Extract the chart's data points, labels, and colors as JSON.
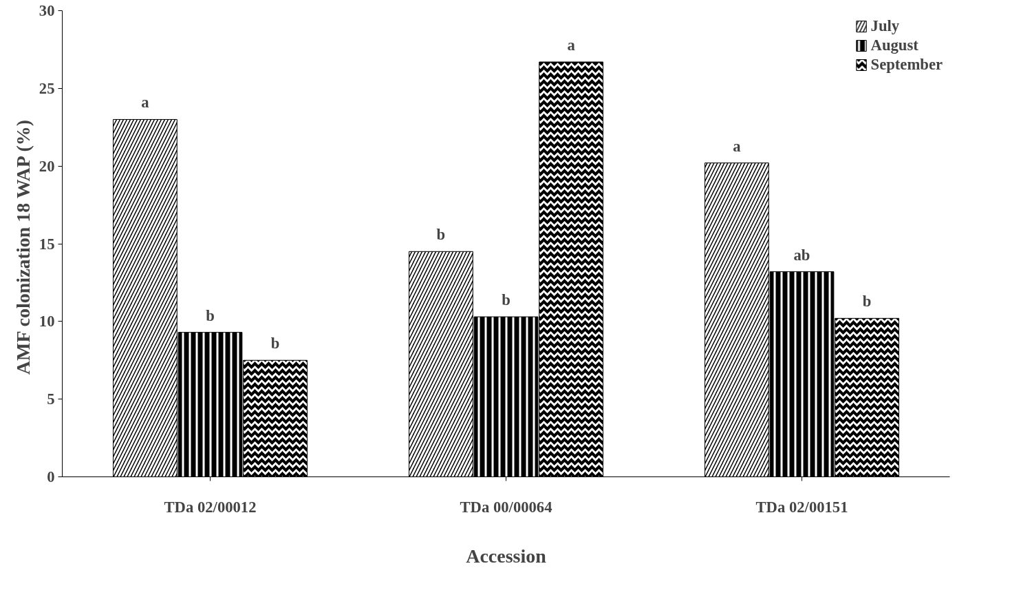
{
  "chart_data": {
    "type": "bar",
    "xlabel": "Accession",
    "ylabel": "AMF colonization  18 WAP (%)",
    "categories": [
      "TDa 02/00012",
      "TDa 00/00064",
      "TDa 02/00151"
    ],
    "series": [
      {
        "name": "July",
        "color": "#000000",
        "values": [
          23.0,
          14.5,
          20.2
        ]
      },
      {
        "name": "August",
        "color": "#000000",
        "values": [
          9.3,
          10.3,
          13.2
        ]
      },
      {
        "name": "September",
        "color": "#000000",
        "values": [
          7.5,
          26.7,
          10.2
        ]
      }
    ],
    "ylim": [
      0,
      30
    ],
    "yticks": [
      0,
      5,
      10,
      15,
      20,
      25,
      30
    ],
    "grid": false,
    "legend": "top right",
    "annotations": [
      "a",
      "b",
      "b",
      "b",
      "b",
      "a",
      "a",
      "ab",
      "b"
    ]
  }
}
